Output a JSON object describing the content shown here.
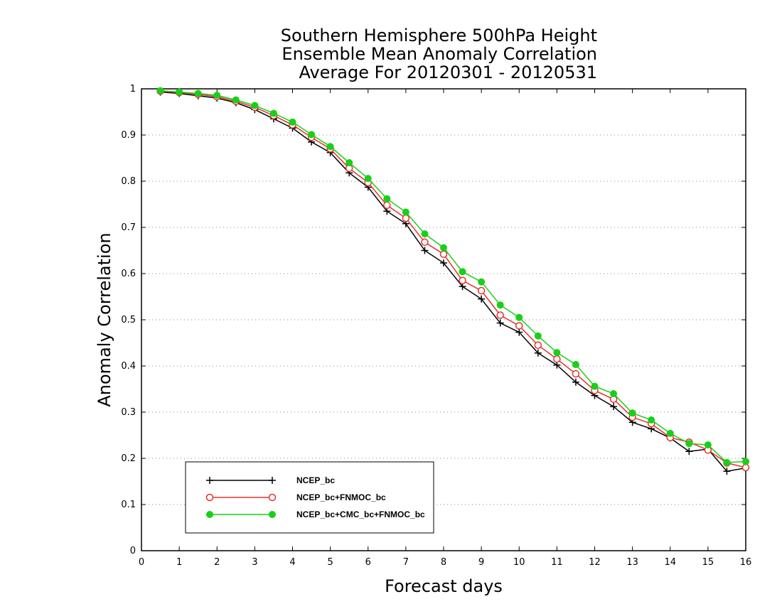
{
  "chart_data": {
    "type": "line",
    "title_lines": [
      "Southern Hemisphere 500hPa Height",
      "Ensemble Mean Anomaly Correlation",
      "Average For 20120301 - 20120531"
    ],
    "xlabel": "Forecast days",
    "ylabel": "Anomaly Correlation",
    "xlim": [
      0,
      16
    ],
    "ylim": [
      0,
      1
    ],
    "x_ticks": [
      "0",
      "1",
      "2",
      "3",
      "4",
      "5",
      "6",
      "7",
      "8",
      "9",
      "10",
      "11",
      "12",
      "13",
      "14",
      "15",
      "16"
    ],
    "y_ticks": [
      "0",
      "0.1",
      "0.2",
      "0.3",
      "0.4",
      "0.5",
      "0.6",
      "0.7",
      "0.8",
      "0.9",
      "1"
    ],
    "grid": "dotted horizontal",
    "legend_position": "bottom-left",
    "x": [
      0.5,
      1,
      1.5,
      2,
      2.5,
      3,
      3.5,
      4,
      4.5,
      5,
      5.5,
      6,
      6.5,
      7,
      7.5,
      8,
      8.5,
      9,
      9.5,
      10,
      10.5,
      11,
      11.5,
      12,
      12.5,
      13,
      13.5,
      14,
      14.5,
      15,
      15.5,
      16
    ],
    "series": [
      {
        "name": "NCEP_bc",
        "color": "#000000",
        "marker": "plus",
        "values": [
          0.993,
          0.99,
          0.985,
          0.98,
          0.97,
          0.955,
          0.935,
          0.915,
          0.885,
          0.862,
          0.818,
          0.787,
          0.735,
          0.708,
          0.65,
          0.623,
          0.572,
          0.545,
          0.493,
          0.473,
          0.428,
          0.402,
          0.365,
          0.336,
          0.312,
          0.278,
          0.264,
          0.244,
          0.215,
          0.22,
          0.172,
          0.179
        ]
      },
      {
        "name": "NCEP_bc+FNMOC_bc",
        "color": "#e83030",
        "marker": "open-circle",
        "values": [
          0.995,
          0.992,
          0.988,
          0.983,
          0.973,
          0.96,
          0.942,
          0.922,
          0.895,
          0.87,
          0.828,
          0.797,
          0.748,
          0.72,
          0.668,
          0.642,
          0.585,
          0.563,
          0.51,
          0.487,
          0.445,
          0.415,
          0.383,
          0.347,
          0.328,
          0.289,
          0.275,
          0.245,
          0.235,
          0.218,
          0.19,
          0.18
        ]
      },
      {
        "name": "NCEP_bc+CMC_bc+FNMOC_bc",
        "color": "#18d018",
        "marker": "filled-circle",
        "values": [
          0.996,
          0.993,
          0.99,
          0.986,
          0.976,
          0.964,
          0.947,
          0.928,
          0.901,
          0.875,
          0.84,
          0.806,
          0.762,
          0.733,
          0.686,
          0.656,
          0.604,
          0.582,
          0.532,
          0.505,
          0.465,
          0.429,
          0.403,
          0.356,
          0.34,
          0.298,
          0.283,
          0.254,
          0.232,
          0.229,
          0.191,
          0.193
        ]
      }
    ]
  }
}
